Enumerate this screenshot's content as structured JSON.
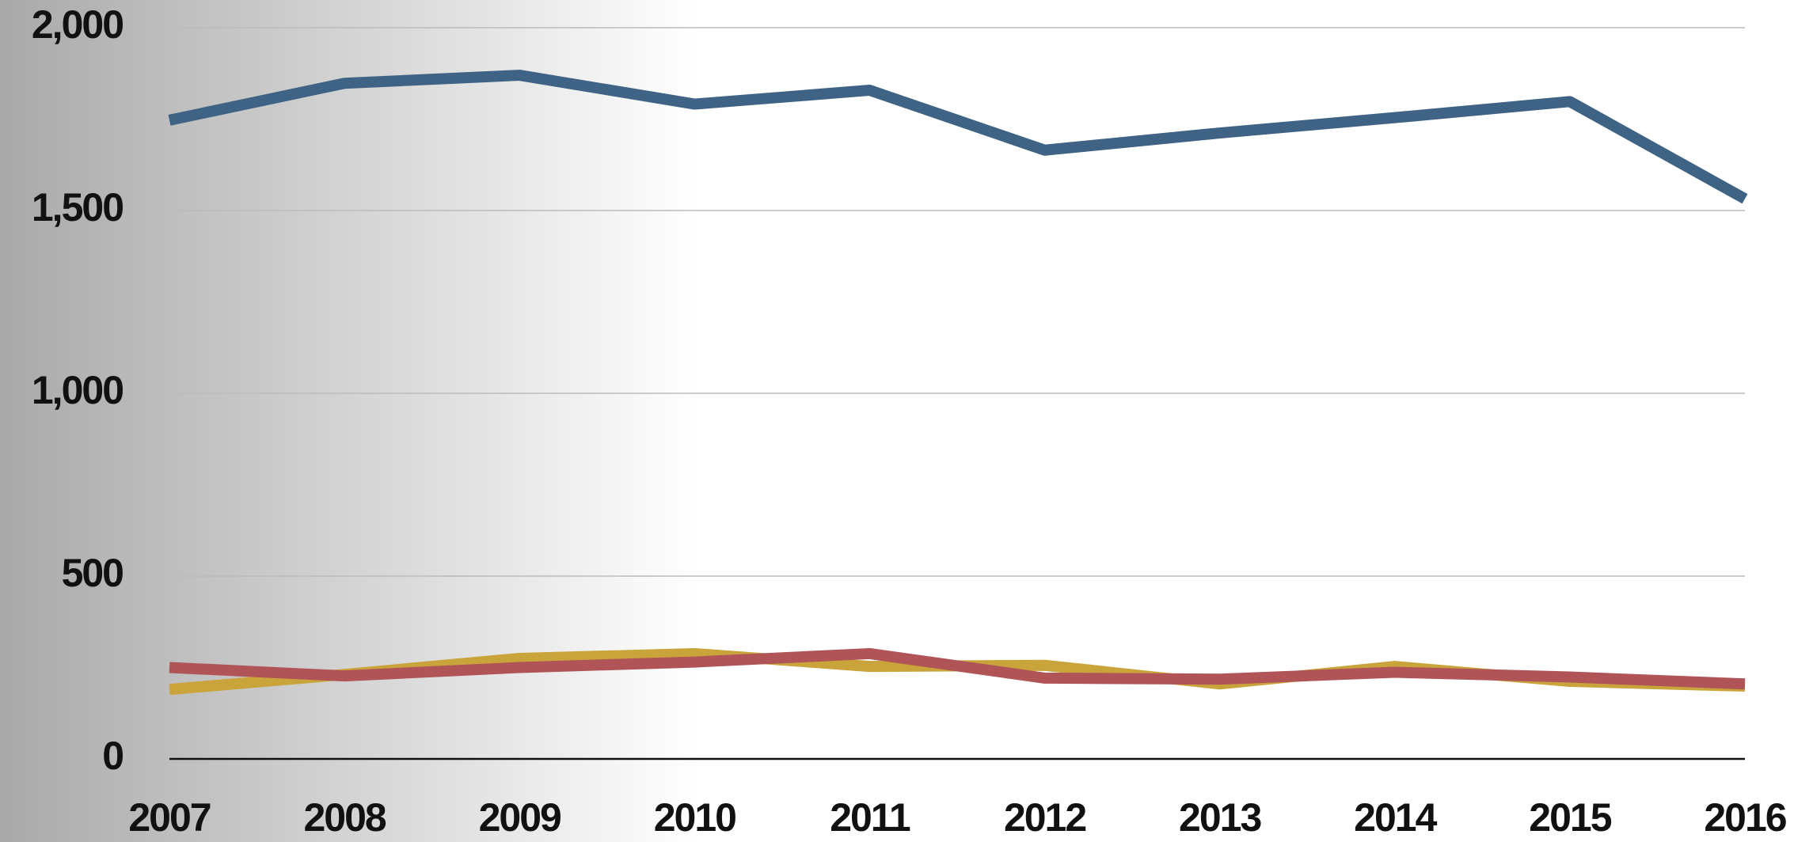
{
  "chart_data": {
    "type": "line",
    "x": [
      2007,
      2008,
      2009,
      2010,
      2011,
      2012,
      2013,
      2014,
      2015,
      2016
    ],
    "xlim": [
      2007,
      2016
    ],
    "series": [
      {
        "color": "#3f6384",
        "values": [
          1747,
          1848,
          1870,
          1791,
          1829,
          1665,
          1712,
          1754,
          1798,
          1532
        ]
      },
      {
        "color": "#c9a43a",
        "values": [
          190,
          231,
          275,
          288,
          253,
          256,
          205,
          253,
          212,
          199
        ]
      },
      {
        "color": "#b05458",
        "values": [
          250,
          227,
          250,
          265,
          288,
          221,
          218,
          237,
          224,
          205
        ]
      }
    ],
    "ylim": [
      0,
      2000
    ],
    "yticks": [
      0,
      500,
      {
        "value": 1000,
        "label": "1,000"
      },
      {
        "value": 1500,
        "label": "1,500"
      },
      {
        "value": 2000,
        "label": "2,000"
      }
    ],
    "grid": true
  }
}
